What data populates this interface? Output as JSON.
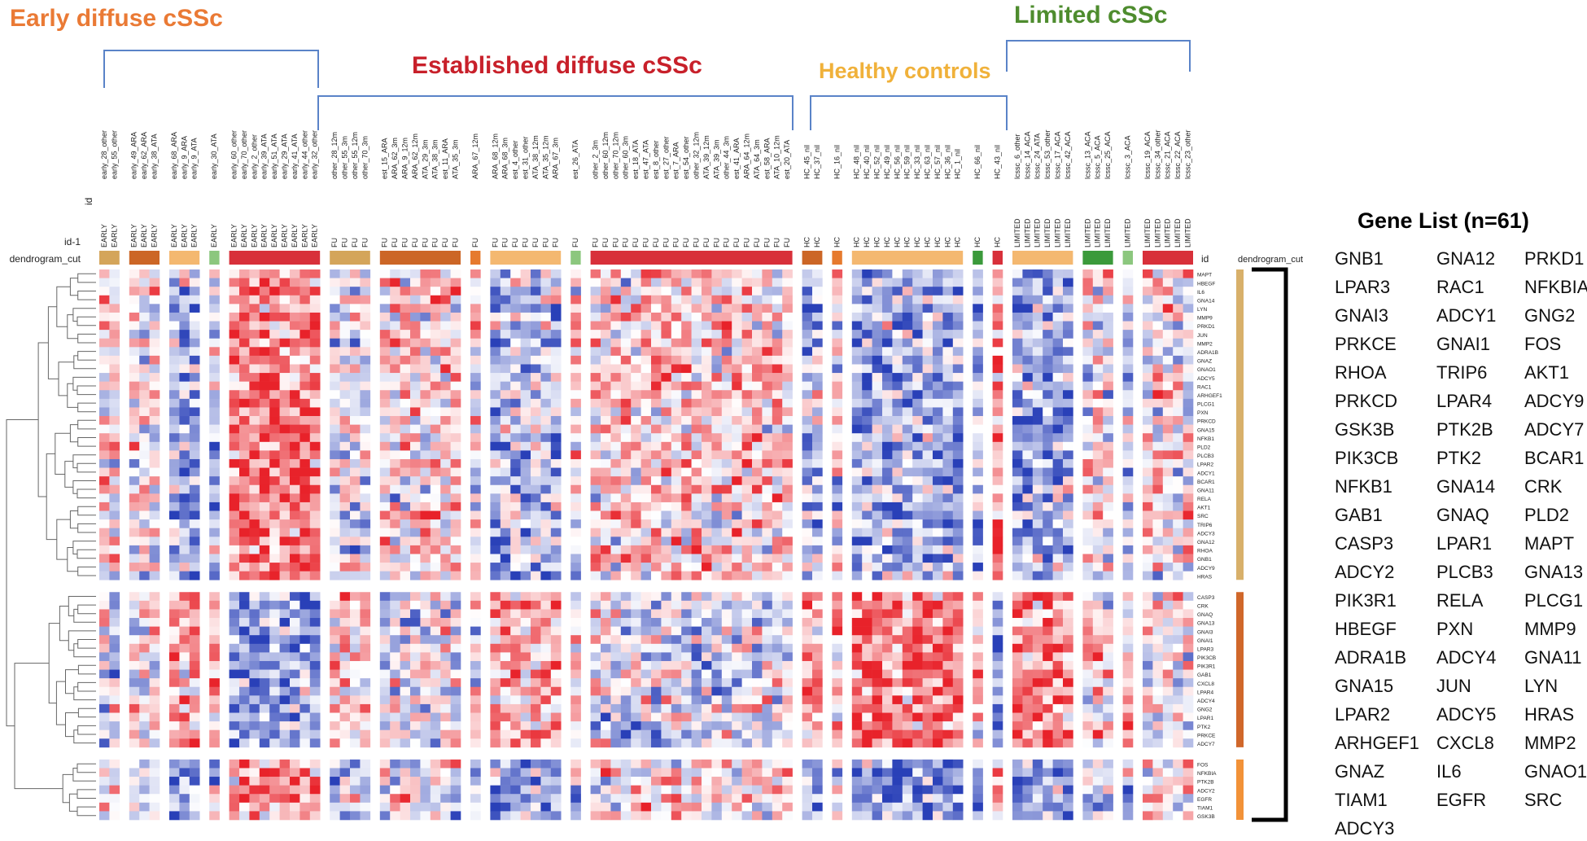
{
  "groups": {
    "early": {
      "label": "Early diffuse cSSc",
      "color": "#ea7a35"
    },
    "established": {
      "label": "Established diffuse cSSc",
      "color": "#c8202a"
    },
    "healthy": {
      "label": "Healthy controls",
      "color": "#f0b13a"
    },
    "limited": {
      "label": "Limited cSSc",
      "color": "#4e8c2e"
    },
    "bracket_color": "#5a83c8"
  },
  "header_labels": {
    "id": "id",
    "id1": "id-1",
    "dendrogram_cut": "dendrogram_cut"
  },
  "gene_list": {
    "title": "Gene List (n=61)",
    "genes": [
      "GNB1",
      "GNA12",
      "PRKD1",
      "LPAR3",
      "RAC1",
      "NFKBIA",
      "GNAI3",
      "ADCY1",
      "GNG2",
      "PRKCE",
      "GNAI1",
      "FOS",
      "RHOA",
      "TRIP6",
      "AKT1",
      "PRKCD",
      "LPAR4",
      "ADCY9",
      "GSK3B",
      "PTK2B",
      "ADCY7",
      "PIK3CB",
      "PTK2",
      "BCAR1",
      "NFKB1",
      "GNA14",
      "CRK",
      "GAB1",
      "GNAQ",
      "PLD2",
      "CASP3",
      "LPAR1",
      "MAPT",
      "ADCY2",
      "PLCB3",
      "GNA13",
      "PIK3R1",
      "RELA",
      "PLCG1",
      "HBEGF",
      "PXN",
      "MMP9",
      "ADRA1B",
      "ADCY4",
      "GNA11",
      "GNA15",
      "JUN",
      "LYN",
      "LPAR2",
      "ADCY5",
      "HRAS",
      "ARHGEF1",
      "CXCL8",
      "MMP2",
      "GNAZ",
      "IL6",
      "GNAO1",
      "TIAM1",
      "EGFR",
      "SRC",
      "ADCY3"
    ]
  },
  "chart_data": {
    "type": "heatmap",
    "color_scale": {
      "low": "#2940b8",
      "mid": "#ffffff",
      "high": "#e8222a"
    },
    "column_blocks": [
      {
        "cluster_color": "#d4a55a",
        "samples": [
          {
            "id": "early_28_other",
            "id1": "EARLY"
          },
          {
            "id": "early_55_other",
            "id1": "EARLY"
          }
        ]
      },
      {
        "cluster_color": "#cc6626",
        "samples": [
          {
            "id": "early_49_ARA",
            "id1": "EARLY"
          },
          {
            "id": "early_62_ARA",
            "id1": "EARLY"
          },
          {
            "id": "early_38_ATA",
            "id1": "EARLY"
          }
        ]
      },
      {
        "cluster_color": "#f4b870",
        "samples": [
          {
            "id": "early_68_ARA",
            "id1": "EARLY"
          },
          {
            "id": "early_9_ARA",
            "id1": "EARLY"
          },
          {
            "id": "early_9_ATA",
            "id1": "EARLY"
          }
        ]
      },
      {
        "cluster_color": "#8cc77e",
        "samples": [
          {
            "id": "early_30_ATA",
            "id1": "EARLY"
          }
        ]
      },
      {
        "cluster_color": "#d8303a",
        "samples": [
          {
            "id": "early_60_other",
            "id1": "EARLY"
          },
          {
            "id": "early_70_other",
            "id1": "EARLY"
          },
          {
            "id": "early_2_other",
            "id1": "EARLY"
          },
          {
            "id": "early_39_ATA",
            "id1": "EARLY"
          },
          {
            "id": "early_51_ATA",
            "id1": "EARLY"
          },
          {
            "id": "early_29_ATA",
            "id1": "EARLY"
          },
          {
            "id": "early_41_ATA",
            "id1": "EARLY"
          },
          {
            "id": "early_44_other",
            "id1": "EARLY"
          },
          {
            "id": "early_32_other",
            "id1": "EARLY"
          }
        ]
      },
      {
        "cluster_color": "#d4a55a",
        "samples": [
          {
            "id": "other_28_12m",
            "id1": "FU"
          },
          {
            "id": "other_55_3m",
            "id1": "FU"
          },
          {
            "id": "other_55_12m",
            "id1": "FU"
          },
          {
            "id": "other_70_3m",
            "id1": "FU"
          }
        ]
      },
      {
        "cluster_color": "#cc6626",
        "samples": [
          {
            "id": "est_15_ARA",
            "id1": "FU"
          },
          {
            "id": "ARA_62_3m",
            "id1": "FU"
          },
          {
            "id": "ARA_9_12m",
            "id1": "FU"
          },
          {
            "id": "ARA_62_12m",
            "id1": "FU"
          },
          {
            "id": "ATA_29_3m",
            "id1": "FU"
          },
          {
            "id": "ATA_38_3m",
            "id1": "FU"
          },
          {
            "id": "est_11_ARA",
            "id1": "FU"
          },
          {
            "id": "ATA_35_3m",
            "id1": "FU"
          }
        ]
      },
      {
        "cluster_color": "#e67a2e",
        "samples": [
          {
            "id": "ARA_67_12m",
            "id1": "FU"
          }
        ]
      },
      {
        "cluster_color": "#f4b870",
        "samples": [
          {
            "id": "ARA_68_12m",
            "id1": "FU"
          },
          {
            "id": "ARA_68_3m",
            "id1": "FU"
          },
          {
            "id": "est_4_other",
            "id1": "FU"
          },
          {
            "id": "est_31_other",
            "id1": "FU"
          },
          {
            "id": "ATA_38_12m",
            "id1": "FU"
          },
          {
            "id": "ATA_35_12m",
            "id1": "FU"
          },
          {
            "id": "ARA_67_3m",
            "id1": "FU"
          }
        ]
      },
      {
        "cluster_color": "#8cc77e",
        "samples": [
          {
            "id": "est_26_ATA",
            "id1": "FU"
          }
        ]
      },
      {
        "cluster_color": "#d8303a",
        "samples": [
          {
            "id": "other_2_3m",
            "id1": "FU"
          },
          {
            "id": "other_60_12m",
            "id1": "FU"
          },
          {
            "id": "other_70_12m",
            "id1": "FU"
          },
          {
            "id": "other_60_3m",
            "id1": "FU"
          },
          {
            "id": "est_18_ATA",
            "id1": "FU"
          },
          {
            "id": "est_47_ATA",
            "id1": "FU"
          },
          {
            "id": "est_8_other",
            "id1": "FU"
          },
          {
            "id": "est_27_other",
            "id1": "FU"
          },
          {
            "id": "est_7_ARA",
            "id1": "FU"
          },
          {
            "id": "est_54_other",
            "id1": "FU"
          },
          {
            "id": "other_32_12m",
            "id1": "FU"
          },
          {
            "id": "ATA_39_12m",
            "id1": "FU"
          },
          {
            "id": "ATA_39_3m",
            "id1": "FU"
          },
          {
            "id": "other_44_3m",
            "id1": "FU"
          },
          {
            "id": "est_41_ARA",
            "id1": "FU"
          },
          {
            "id": "ARA_64_12m",
            "id1": "FU"
          },
          {
            "id": "ATA_64_3m",
            "id1": "FU"
          },
          {
            "id": "est_58_ARA",
            "id1": "FU"
          },
          {
            "id": "ATA_10_12m",
            "id1": "FU"
          },
          {
            "id": "est_20_ATA",
            "id1": "FU"
          }
        ]
      },
      {
        "cluster_color": "#cc6626",
        "samples": [
          {
            "id": "HC_45_nil",
            "id1": "HC"
          },
          {
            "id": "HC_37_nil",
            "id1": "HC"
          }
        ]
      },
      {
        "cluster_color": "#e67a2e",
        "samples": [
          {
            "id": "HC_16_nil",
            "id1": "HC"
          }
        ]
      },
      {
        "cluster_color": "#f4b870",
        "samples": [
          {
            "id": "HC_48_nil",
            "id1": "HC"
          },
          {
            "id": "HC_40_nil",
            "id1": "HC"
          },
          {
            "id": "HC_52_nil",
            "id1": "HC"
          },
          {
            "id": "HC_49_nil",
            "id1": "HC"
          },
          {
            "id": "HC_56_nil",
            "id1": "HC"
          },
          {
            "id": "HC_59_nil",
            "id1": "HC"
          },
          {
            "id": "HC_33_nil",
            "id1": "HC"
          },
          {
            "id": "HC_63_nil",
            "id1": "HC"
          },
          {
            "id": "HC_57_nil",
            "id1": "HC"
          },
          {
            "id": "HC_36_nil",
            "id1": "HC"
          },
          {
            "id": "HC_1_nil",
            "id1": "HC"
          }
        ]
      },
      {
        "cluster_color": "#3b9a3b",
        "samples": [
          {
            "id": "HC_66_nil",
            "id1": "HC"
          }
        ]
      },
      {
        "cluster_color": "#d8303a",
        "samples": [
          {
            "id": "HC_43_nil",
            "id1": "HC"
          }
        ]
      },
      {
        "cluster_color": "#f4b870",
        "samples": [
          {
            "id": "lcssc_6_other",
            "id1": "LIMITED"
          },
          {
            "id": "lcssc_14_ACA",
            "id1": "LIMITED"
          },
          {
            "id": "lcssc_24_ATA",
            "id1": "LIMITED"
          },
          {
            "id": "lcssc_53_other",
            "id1": "LIMITED"
          },
          {
            "id": "lcssc_17_ACA",
            "id1": "LIMITED"
          },
          {
            "id": "lcssc_42_ACA",
            "id1": "LIMITED"
          }
        ]
      },
      {
        "cluster_color": "#3b9a3b",
        "samples": [
          {
            "id": "lcssc_13_ACA",
            "id1": "LIMITED"
          },
          {
            "id": "lcssc_5_ACA",
            "id1": "LIMITED"
          },
          {
            "id": "lcssc_25_ACA",
            "id1": "LIMITED"
          }
        ]
      },
      {
        "cluster_color": "#8cc77e",
        "samples": [
          {
            "id": "lcssc_3_ACA",
            "id1": "LIMITED"
          }
        ]
      },
      {
        "cluster_color": "#d8303a",
        "samples": [
          {
            "id": "lcssc_19_ACA",
            "id1": "LIMITED"
          },
          {
            "id": "lcssc_34_other",
            "id1": "LIMITED"
          },
          {
            "id": "lcssc_21_ACA",
            "id1": "LIMITED"
          },
          {
            "id": "lcssc_22_ACA",
            "id1": "LIMITED"
          },
          {
            "id": "lcssc_23_other",
            "id1": "LIMITED"
          }
        ]
      }
    ],
    "row_blocks": [
      {
        "cluster_color": "#d8b06a",
        "genes": [
          "MAPT",
          "HBEGF",
          "IL6",
          "GNA14",
          "LYN",
          "MMP9",
          "PRKD1",
          "JUN",
          "MMP2",
          "ADRA1B",
          "GNAZ",
          "GNAO1",
          "ADCY5",
          "RAC1",
          "ARHGEF1",
          "PLCG1",
          "PXN",
          "PRKCD",
          "GNA15",
          "NFKB1",
          "PLD2",
          "PLCB3",
          "LPAR2",
          "ADCY1",
          "BCAR1",
          "GNA11",
          "RELA",
          "AKT1",
          "SRC",
          "TRIP6",
          "ADCY3",
          "GNA12",
          "RHOA",
          "GNB1",
          "ADCY9",
          "HRAS"
        ]
      },
      {
        "cluster_color": "#d0672a",
        "genes": [
          "CASP3",
          "CRK",
          "GNAQ",
          "GNA13",
          "GNAI3",
          "GNAI1",
          "LPAR3",
          "PIK3CB",
          "PIK3R1",
          "GAB1",
          "CXCL8",
          "LPAR4",
          "ADCY4",
          "GNG2",
          "LPAR1",
          "PTK2",
          "PRKCE",
          "ADCY7"
        ]
      },
      {
        "cluster_color": "#f29238",
        "genes": [
          "FOS",
          "NFKBIA",
          "PTK2B",
          "ADCY2",
          "EGFR",
          "TIAM1",
          "GSK3B"
        ]
      }
    ]
  }
}
